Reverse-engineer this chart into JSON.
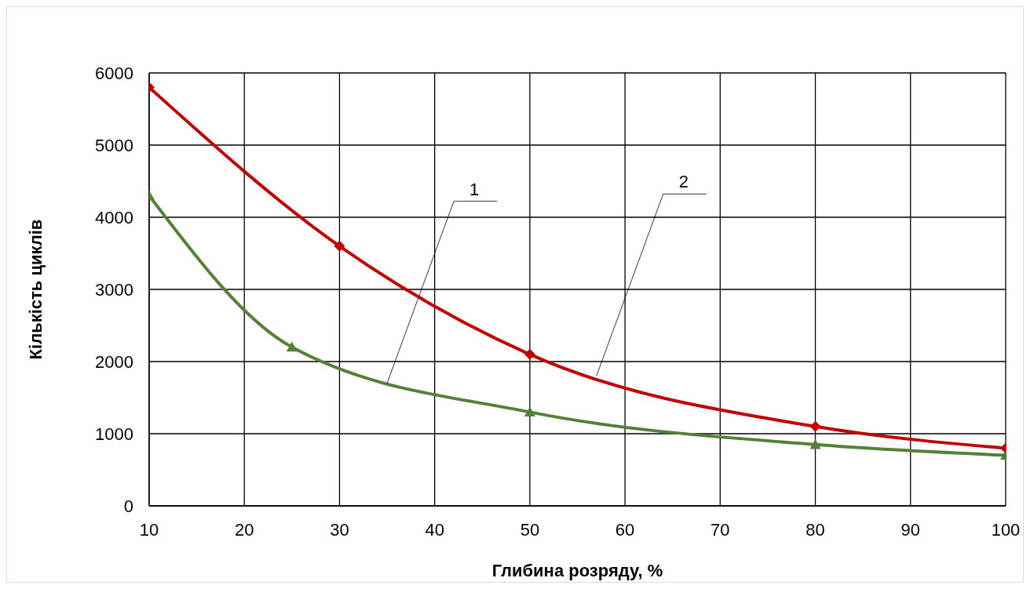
{
  "chart_data": {
    "type": "line",
    "xlabel": "Глибина розряду, %",
    "ylabel": "Кількість циклів",
    "xlim": [
      10,
      100
    ],
    "xticks": [
      10,
      20,
      30,
      40,
      50,
      60,
      70,
      80,
      90,
      100
    ],
    "ylim": [
      0,
      6000
    ],
    "yticks": [
      0,
      1000,
      2000,
      3000,
      4000,
      5000,
      6000
    ],
    "grid": true,
    "legend": false,
    "line_style": "solid",
    "series": [
      {
        "color": "#c00000",
        "marker": "diamond",
        "x": [
          10,
          30,
          50,
          80,
          100
        ],
        "values": [
          5800,
          3600,
          2100,
          1100,
          800
        ]
      },
      {
        "color": "#538135",
        "marker": "triangle",
        "x": [
          10,
          25,
          50,
          80,
          100
        ],
        "values": [
          4300,
          2200,
          1300,
          850,
          700
        ]
      }
    ],
    "annotations": [
      {
        "text": "1",
        "x": 35,
        "y": 1700
      },
      {
        "text": "2",
        "x": 57,
        "y": 1800
      }
    ]
  }
}
